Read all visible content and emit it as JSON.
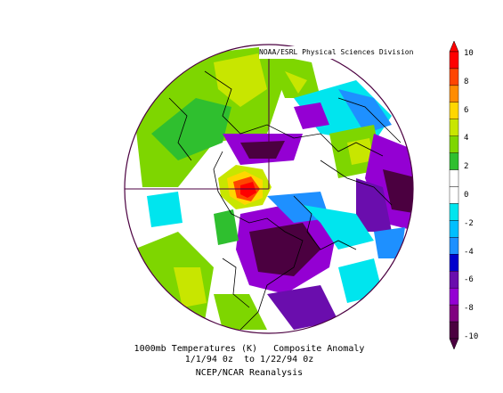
{
  "map": {
    "credit": "NOAA/ESRL Physical Sciences Division",
    "title_line1": "1000mb Temperatures (K)   Composite Anomaly",
    "title_line2": "1/1/94 0z  to 1/22/94 0z",
    "source": "NCEP/NCAR Reanalysis",
    "projection": "north polar stereographic"
  },
  "colorbar": {
    "labels": [
      "10",
      "8",
      "6",
      "4",
      "2",
      "0",
      "-2",
      "-4",
      "-6",
      "-8",
      "-10"
    ],
    "colors": [
      "#ff0000",
      "#ff4500",
      "#ff8c00",
      "#ffd700",
      "#c8e600",
      "#7ed600",
      "#2fbf2f",
      "#ffffff",
      "#ffffff",
      "#00e5ee",
      "#00bfff",
      "#1e90ff",
      "#0000cd",
      "#6a0dad",
      "#9400d3",
      "#800080",
      "#4b0040"
    ]
  },
  "colors": {
    "outline": "#4b0040",
    "coast": "#000000",
    "land_bg": "#ffffff"
  }
}
